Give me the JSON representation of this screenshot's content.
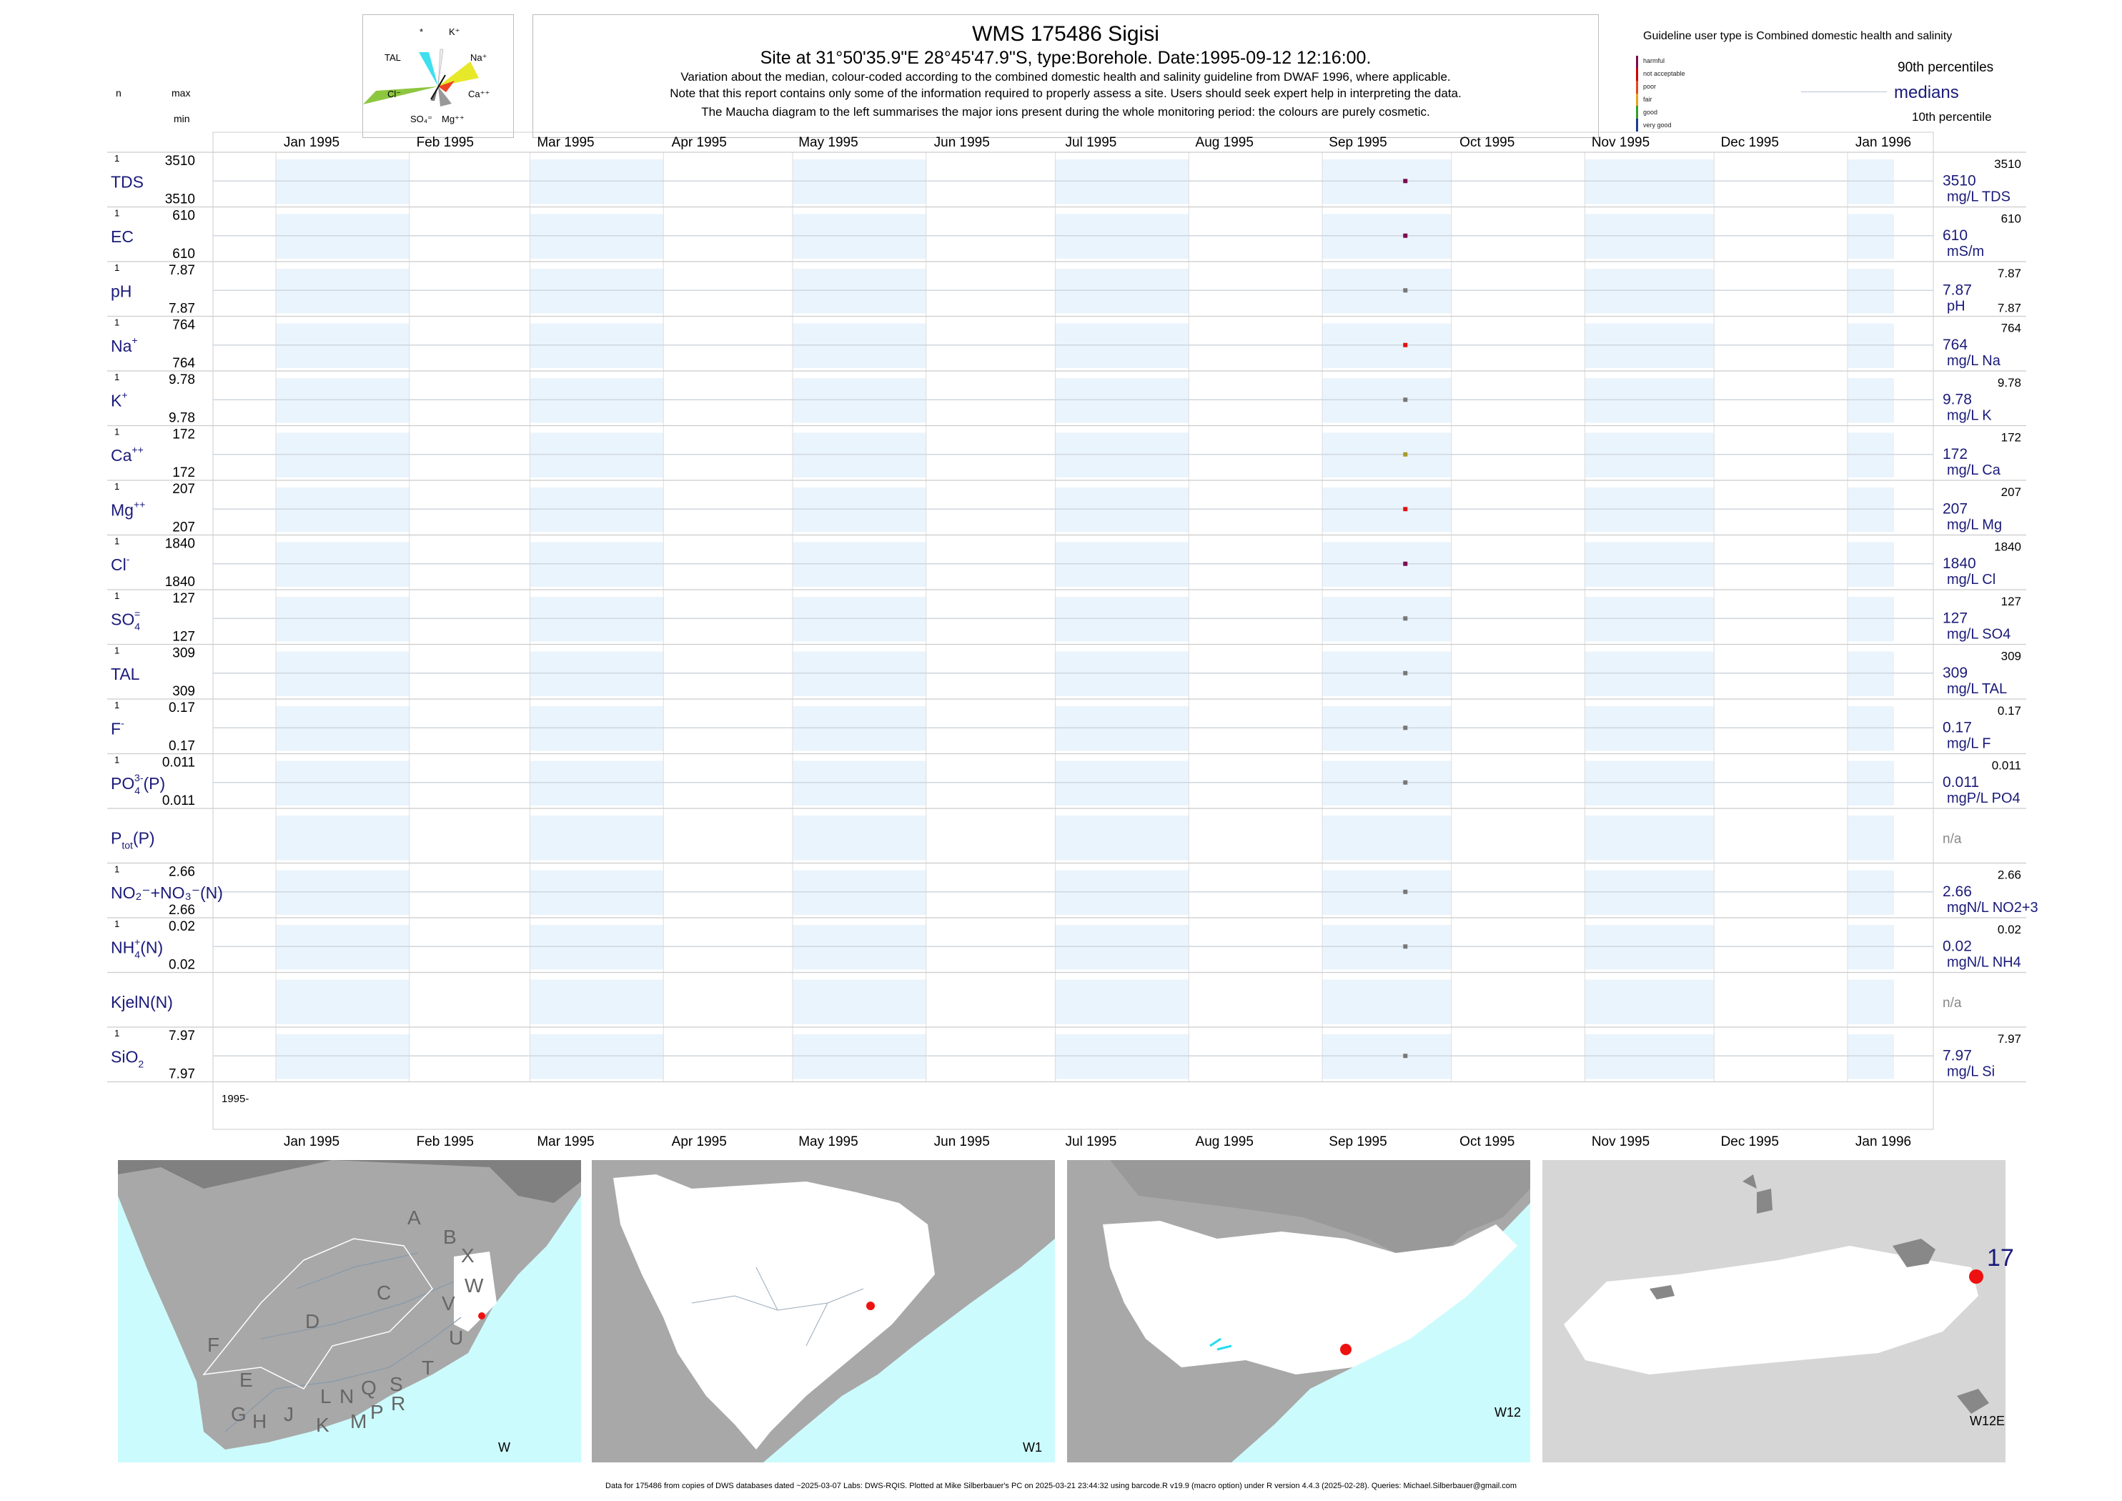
{
  "header": {
    "title": "WMS 175486  Sigisi",
    "subtitle": "Site at 31°50'35.9\"E 28°45'47.9\"S, type:Borehole. Date:1995-09-12 12:16:00.",
    "notes": [
      "Variation about the median,  colour-coded according to the combined domestic health and salinity guideline from DWAF 1996, where applicable.",
      "Note that this report contains only some of the information required to properly assess a site. Users should seek expert help in interpreting the data.",
      "The Maucha diagram to the left summarises the major ions present during the whole monitoring period: the colours are purely cosmetic."
    ],
    "left_labels": {
      "n": "n",
      "max": "max",
      "min": "min"
    },
    "maucha_labels": [
      "*",
      "K⁺",
      "TAL",
      "Na⁺",
      "Cl⁻",
      "Ca⁺⁺",
      "SO₄⁼",
      "Mg⁺⁺"
    ]
  },
  "legend": {
    "guideline_text": "Guideline user type is Combined domestic health and salinity",
    "classes": [
      {
        "label": "harmful",
        "color": "#7b0c4f"
      },
      {
        "label": "not acceptable",
        "color": "#cc0000"
      },
      {
        "label": "poor",
        "color": "#e6471f"
      },
      {
        "label": "fair",
        "color": "#e8a317"
      },
      {
        "label": "good",
        "color": "#33a02c"
      },
      {
        "label": "very good",
        "color": "#1f3a93"
      }
    ],
    "p90": "90th percentiles",
    "medians": "medians",
    "p10": "10th percentile"
  },
  "chart_data": {
    "type": "scatter",
    "x_ticks": [
      "Jan 1995",
      "Feb 1995",
      "Mar 1995",
      "Apr 1995",
      "May 1995",
      "Jun 1995",
      "Jul 1995",
      "Aug 1995",
      "Sep 1995",
      "Oct 1995",
      "Nov 1995",
      "Dec 1995",
      "Jan 1996"
    ],
    "x_range": [
      "1995-01-01",
      "1996-01-01"
    ],
    "sample_date": "1995-09-12",
    "bottom_axis_note": "1995-",
    "rows": [
      {
        "label": "TDS",
        "n": "1",
        "max": "3510",
        "min": "3510",
        "value": 3510,
        "right_value": "3510",
        "right_max": "3510",
        "unit": "mg/L TDS",
        "color": "#7b0c4f"
      },
      {
        "label": "EC",
        "n": "1",
        "max": "610",
        "min": "610",
        "value": 610,
        "right_value": "610",
        "right_max": "610",
        "unit": "mS/m",
        "color": "#7b0c4f"
      },
      {
        "label": "pH",
        "n": "1",
        "max": "7.87",
        "min": "7.87",
        "value": 7.87,
        "right_value": "7.87",
        "right_max": "7.87",
        "right_min": "7.87",
        "unit": "pH",
        "color": "#777777"
      },
      {
        "label": "Na",
        "sup": "+",
        "n": "1",
        "max": "764",
        "min": "764",
        "value": 764,
        "right_value": "764",
        "right_max": "764",
        "unit": "mg/L Na",
        "color": "#dd1111"
      },
      {
        "label": "K",
        "sup": "+",
        "n": "1",
        "max": "9.78",
        "min": "9.78",
        "value": 9.78,
        "right_value": "9.78",
        "right_max": "9.78",
        "unit": "mg/L K",
        "color": "#777777"
      },
      {
        "label": "Ca",
        "sup": "++",
        "n": "1",
        "max": "172",
        "min": "172",
        "value": 172,
        "right_value": "172",
        "right_max": "172",
        "unit": "mg/L Ca",
        "color": "#a89b2a"
      },
      {
        "label": "Mg",
        "sup": "++",
        "n": "1",
        "max": "207",
        "min": "207",
        "value": 207,
        "right_value": "207",
        "right_max": "207",
        "unit": "mg/L Mg",
        "color": "#dd1111"
      },
      {
        "label": "Cl",
        "sup": "-",
        "n": "1",
        "max": "1840",
        "min": "1840",
        "value": 1840,
        "right_value": "1840",
        "right_max": "1840",
        "unit": "mg/L Cl",
        "color": "#7b0c4f"
      },
      {
        "label": "SO",
        "sub": "4",
        "sup": "=",
        "n": "1",
        "max": "127",
        "min": "127",
        "value": 127,
        "right_value": "127",
        "right_max": "127",
        "unit": "mg/L SO4",
        "color": "#777777"
      },
      {
        "label": "TAL",
        "n": "1",
        "max": "309",
        "min": "309",
        "value": 309,
        "right_value": "309",
        "right_max": "309",
        "unit": "mg/L TAL",
        "color": "#777777"
      },
      {
        "label": "F",
        "sup": "-",
        "n": "1",
        "max": "0.17",
        "min": "0.17",
        "value": 0.17,
        "right_value": "0.17",
        "right_max": "0.17",
        "unit": "mg/L F",
        "color": "#777777"
      },
      {
        "label": "PO",
        "sub": "4",
        "sup": "3-",
        "suffix": "(P)",
        "n": "1",
        "max": "0.011",
        "min": "0.011",
        "value": 0.011,
        "right_value": "0.011",
        "right_max": "0.011",
        "unit": "mgP/L PO4",
        "color": "#777777"
      },
      {
        "label": "P",
        "sub": "tot",
        "suffix": "(P)",
        "n": "",
        "max": "",
        "min": "",
        "value": null,
        "right_value": "n/a",
        "right_max": "",
        "unit": "",
        "color": ""
      },
      {
        "label": "NO₂⁻+NO₃⁻(N)",
        "n": "1",
        "max": "2.66",
        "min": "2.66",
        "value": 2.66,
        "right_value": "2.66",
        "right_max": "2.66",
        "unit": "mgN/L NO2+3",
        "color": "#777777"
      },
      {
        "label": "NH",
        "sub": "4",
        "sup": "+",
        "suffix": "(N)",
        "n": "1",
        "max": "0.02",
        "min": "0.02",
        "value": 0.02,
        "right_value": "0.02",
        "right_max": "0.02",
        "unit": "mgN/L NH4",
        "color": "#777777"
      },
      {
        "label": "KjelN(N)",
        "n": "",
        "max": "",
        "min": "",
        "value": null,
        "right_value": "n/a",
        "right_max": "",
        "unit": "",
        "color": ""
      },
      {
        "label": "SiO",
        "sub": "2",
        "n": "1",
        "max": "7.97",
        "min": "7.97",
        "value": 7.97,
        "right_value": "7.97",
        "right_max": "7.97",
        "unit": "mg/L Si",
        "color": "#777777"
      }
    ]
  },
  "maps": [
    {
      "caption": "W",
      "region_letters": [
        "A",
        "B",
        "X",
        "W",
        "C",
        "V",
        "D",
        "U",
        "F",
        "T",
        "E",
        "S",
        "G",
        "H",
        "J",
        "L",
        "N",
        "Q",
        "R",
        "K",
        "M",
        "P"
      ]
    },
    {
      "caption": "W1"
    },
    {
      "caption": "W12"
    },
    {
      "caption": "W12E",
      "site_label": "17"
    }
  ],
  "colors": {
    "text_blue": "#1a1a7a",
    "band_fill": "#eaf4fd",
    "sea": "#ccfbfd",
    "land_grey": "#aaaaaa",
    "site_dot": "#ee1111"
  },
  "footer": "Data for 175486 from copies of DWS databases dated ~2025-03-07 Labs: DWS-RQIS. Plotted at Mike Silberbauer's PC on 2025-03-21 23:44:32 using barcode.R v19.9 (macro option) under R version 4.4.3 (2025-02-28). Queries: Michael.Silberbauer@gmail.com"
}
